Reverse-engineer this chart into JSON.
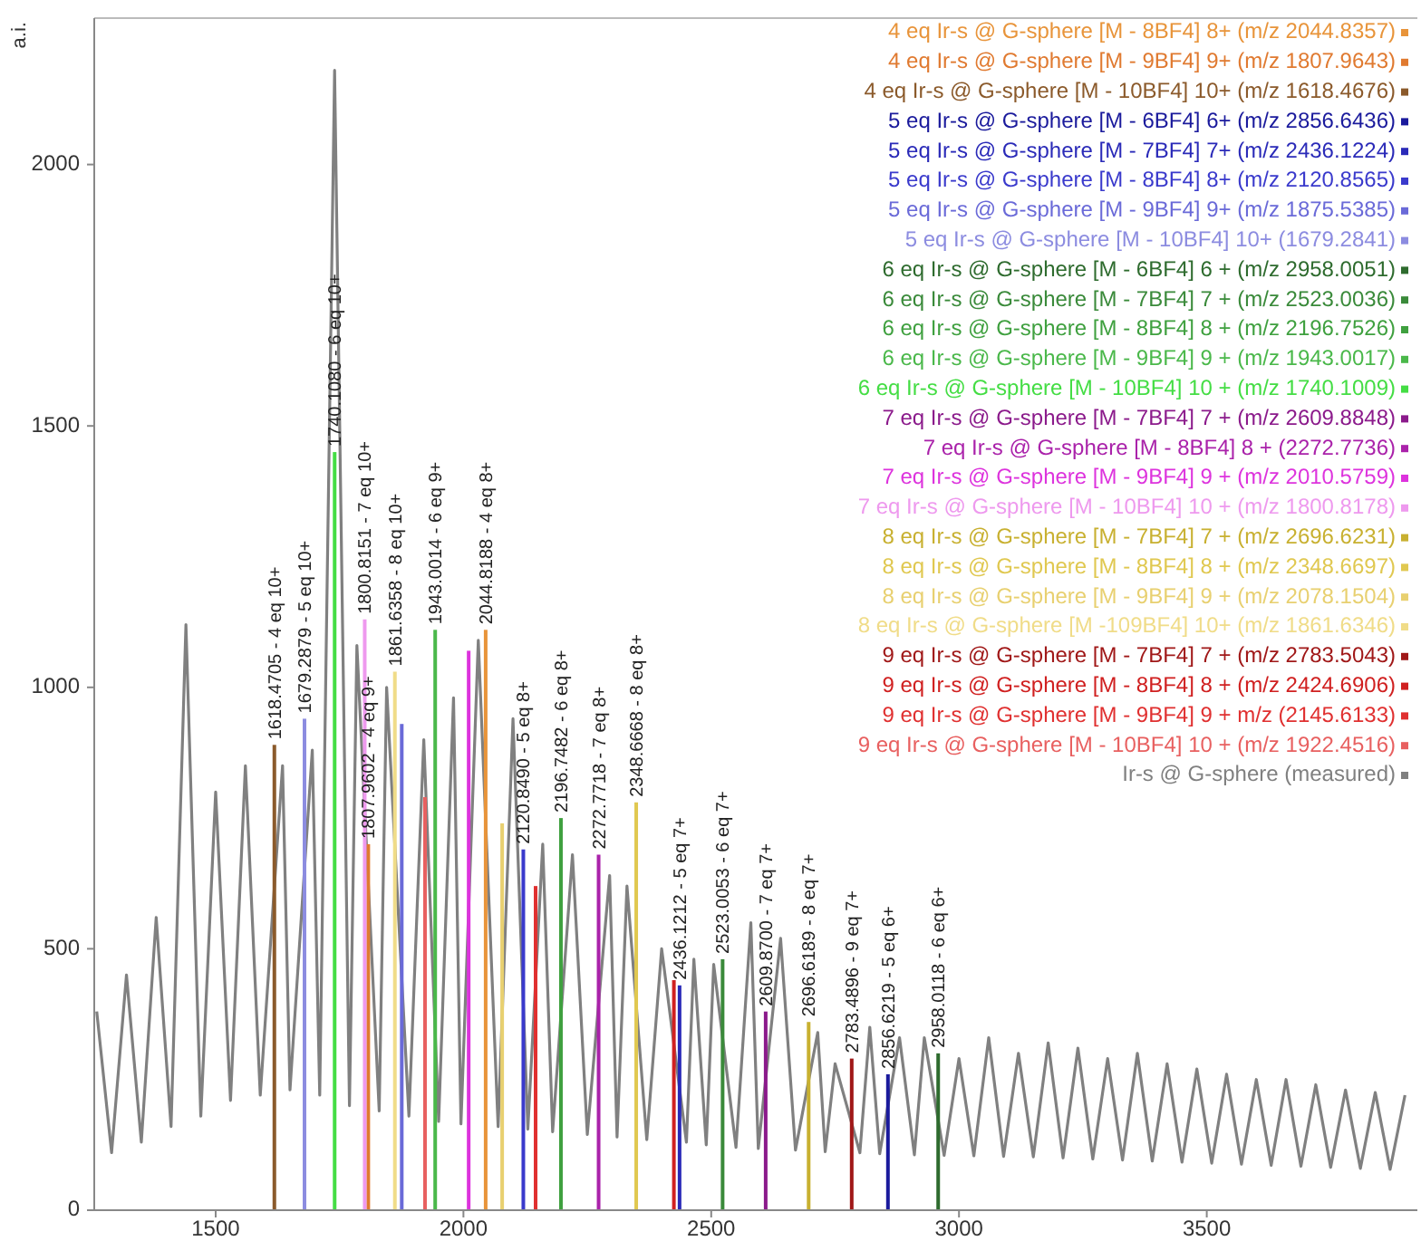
{
  "chart_data": {
    "type": "bar",
    "ylabel": "a.i.",
    "xlim": [
      1255,
      3925
    ],
    "ylim": [
      0,
      2280
    ],
    "xticks": [
      1500,
      2000,
      2500,
      3000,
      3500
    ],
    "yticks": [
      0,
      500,
      1000,
      1500,
      2000
    ],
    "grid": false,
    "legend": "top right",
    "series": [
      {
        "name": "4 eq Ir-s @ G-sphere [M - 8BF4] 8+ (m/z 2044.8357)",
        "color": "#e8943a",
        "x": [
          2044.8357
        ],
        "values": [
          1110
        ]
      },
      {
        "name": "4 eq Ir-s @ G-sphere [M - 9BF4] 9+ (m/z 1807.9643)",
        "color": "#e07a30",
        "x": [
          1807.9643
        ],
        "values": [
          700
        ]
      },
      {
        "name": "4 eq Ir-s @ G-sphere [M - 10BF4] 10+ (m/z 1618.4676)",
        "color": "#8b5a2b",
        "x": [
          1618.4676
        ],
        "values": [
          890
        ]
      },
      {
        "name": "5 eq Ir-s @ G-sphere [M - 6BF4] 6+ (m/z 2856.6436)",
        "color": "#1a1a9c",
        "x": [
          2856.6436
        ],
        "values": [
          260
        ]
      },
      {
        "name": "5 eq Ir-s @ G-sphere [M - 7BF4] 7+ (m/z 2436.1224)",
        "color": "#2a2ab8",
        "x": [
          2436.1224
        ],
        "values": [
          430
        ]
      },
      {
        "name": "5 eq Ir-s @ G-sphere [M - 8BF4] 8+ (m/z 2120.8565)",
        "color": "#3a3acc",
        "x": [
          2120.8565
        ],
        "values": [
          690
        ]
      },
      {
        "name": "5 eq Ir-s @ G-sphere [M - 9BF4] 9+ (m/z 1875.5385)",
        "color": "#6a6ad8",
        "x": [
          1875.5385
        ],
        "values": [
          930
        ]
      },
      {
        "name": "5 eq Ir-s @ G-sphere [M - 10BF4] 10+ (1679.2841)",
        "color": "#8c8ce0",
        "x": [
          1679.2841
        ],
        "values": [
          940
        ]
      },
      {
        "name": "6 eq Ir-s @ G-sphere [M - 6BF4] 6 + (m/z 2958.0051)",
        "color": "#2e6b2e",
        "x": [
          2958.0051
        ],
        "values": [
          300
        ]
      },
      {
        "name": "6 eq Ir-s @ G-sphere [M - 7BF4] 7 + (m/z 2523.0036)",
        "color": "#3a8a3a",
        "x": [
          2523.0036
        ],
        "values": [
          480
        ]
      },
      {
        "name": "6 eq Ir-s @ G-sphere [M - 8BF4] 8 + (m/z 2196.7526)",
        "color": "#3fa03f",
        "x": [
          2196.7526
        ],
        "values": [
          750
        ]
      },
      {
        "name": "6 eq Ir-s @ G-sphere [M - 9BF4] 9 + (m/z 1943.0017)",
        "color": "#4ab84a",
        "x": [
          1943.0017
        ],
        "values": [
          1110
        ]
      },
      {
        "name": "6 eq Ir-s @ G-sphere [M - 10BF4] 10 + (m/z 1740.1009)",
        "color": "#44dd44",
        "x": [
          1740.1009
        ],
        "values": [
          1450
        ]
      },
      {
        "name": "7 eq Ir-s @ G-sphere [M - 7BF4] 7 + (m/z 2609.8848)",
        "color": "#8b1a8b",
        "x": [
          2609.8848
        ],
        "values": [
          380
        ]
      },
      {
        "name": "7 eq Ir-s @ G-sphere [M - 8BF4] 8 + (2272.7736)",
        "color": "#aa22aa",
        "x": [
          2272.7736
        ],
        "values": [
          680
        ]
      },
      {
        "name": "7 eq Ir-s @ G-sphere [M - 9BF4] 9 + (m/z 2010.5759)",
        "color": "#dd33dd",
        "x": [
          2010.5759
        ],
        "values": [
          1070
        ]
      },
      {
        "name": "7 eq Ir-s @ G-sphere [M - 10BF4] 10 + (m/z 1800.8178)",
        "color": "#ee99ee",
        "x": [
          1800.8178
        ],
        "values": [
          1130
        ]
      },
      {
        "name": "8 eq Ir-s @ G-sphere [M - 7BF4] 7 + (m/z 2696.6231)",
        "color": "#c8b030",
        "x": [
          2696.6231
        ],
        "values": [
          360
        ]
      },
      {
        "name": "8 eq Ir-s @ G-sphere [M - 8BF4] 8 + (m/z 2348.6697)",
        "color": "#e0c850",
        "x": [
          2348.6697
        ],
        "values": [
          780
        ]
      },
      {
        "name": "8 eq Ir-s @ G-sphere [M - 9BF4] 9 + (m/z 2078.1504)",
        "color": "#e8d070",
        "x": [
          2078.1504
        ],
        "values": [
          740
        ]
      },
      {
        "name": "8 eq Ir-s @ G-sphere [M -109BF4] 10+ (m/z 1861.6346)",
        "color": "#f0dc88",
        "x": [
          1861.6346
        ],
        "values": [
          1030
        ]
      },
      {
        "name": "9 eq Ir-s @ G-sphere [M - 7BF4] 7 + (m/z 2783.5043)",
        "color": "#a01818",
        "x": [
          2783.5043
        ],
        "values": [
          290
        ]
      },
      {
        "name": "9 eq Ir-s @ G-sphere [M - 8BF4] 8 + (m/z 2424.6906)",
        "color": "#d02020",
        "x": [
          2424.6906
        ],
        "values": [
          440
        ]
      },
      {
        "name": "9 eq Ir-s @ G-sphere [M - 9BF4] 9 + m/z (2145.6133)",
        "color": "#e03030",
        "x": [
          2145.6133
        ],
        "values": [
          620
        ]
      },
      {
        "name": "9 eq Ir-s @ G-sphere [M - 10BF4] 10 + (m/z 1922.4516)",
        "color": "#e86060",
        "x": [
          1922.4516
        ],
        "values": [
          790
        ]
      },
      {
        "name": "Ir-s @ G-sphere (measured)",
        "color": "#808080",
        "type": "line",
        "x": [
          1260,
          1290,
          1320,
          1350,
          1380,
          1410,
          1440,
          1470,
          1500,
          1530,
          1560,
          1590,
          1635,
          1650,
          1695,
          1710,
          1740,
          1770,
          1785,
          1830,
          1845,
          1890,
          1920,
          1950,
          1980,
          1995,
          2030,
          2070,
          2100,
          2130,
          2160,
          2180,
          2220,
          2250,
          2295,
          2310,
          2330,
          2370,
          2400,
          2450,
          2465,
          2490,
          2505,
          2550,
          2580,
          2595,
          2640,
          2670,
          2715,
          2730,
          2750,
          2800,
          2820,
          2840,
          2880,
          2910,
          2930,
          2970,
          3000,
          3030,
          3060,
          3090,
          3120,
          3150,
          3180,
          3210,
          3240,
          3270,
          3300,
          3330,
          3360,
          3390,
          3420,
          3450,
          3480,
          3510,
          3540,
          3570,
          3600,
          3630,
          3660,
          3690,
          3720,
          3750,
          3780,
          3810,
          3840,
          3870,
          3900
        ],
        "values": [
          380,
          110,
          450,
          130,
          560,
          160,
          1120,
          180,
          800,
          210,
          850,
          220,
          850,
          230,
          880,
          220,
          2180,
          200,
          1080,
          190,
          1000,
          180,
          900,
          170,
          980,
          165,
          1090,
          160,
          940,
          155,
          700,
          150,
          680,
          145,
          640,
          140,
          620,
          135,
          500,
          130,
          480,
          125,
          470,
          120,
          550,
          118,
          520,
          115,
          340,
          112,
          280,
          110,
          350,
          108,
          330,
          106,
          330,
          105,
          290,
          104,
          330,
          103,
          300,
          102,
          320,
          100,
          310,
          98,
          290,
          96,
          300,
          94,
          280,
          92,
          270,
          90,
          260,
          88,
          250,
          86,
          250,
          84,
          240,
          82,
          230,
          80,
          225,
          78,
          220
        ]
      }
    ],
    "annotations": [
      {
        "text": "1618.4705 - 4 eq 10+",
        "x": 1618.4705,
        "y": 890
      },
      {
        "text": "1679.2879 - 5 eq 10+",
        "x": 1679.2879,
        "y": 940
      },
      {
        "text": "1740.1080 - 6 eq 10+",
        "x": 1740.108,
        "y": 1450
      },
      {
        "text": "1800.8151 - 7 eq 10+",
        "x": 1800.8151,
        "y": 1130
      },
      {
        "text": "1807.9602 - 4 eq 9+",
        "x": 1807.9602,
        "y": 700
      },
      {
        "text": "1861.6358 - 8 eq 10+",
        "x": 1861.6358,
        "y": 1030
      },
      {
        "text": "1943.0014 - 6 eq 9+",
        "x": 1943.0014,
        "y": 1110
      },
      {
        "text": "2044.8188 - 4 eq 8+",
        "x": 2044.8188,
        "y": 1110
      },
      {
        "text": "2120.8490 - 5 eq 8+",
        "x": 2120.849,
        "y": 690
      },
      {
        "text": "2196.7482 - 6 eq 8+",
        "x": 2196.7482,
        "y": 750
      },
      {
        "text": "2272.7718 - 7 eq 8+",
        "x": 2272.7718,
        "y": 680
      },
      {
        "text": "2348.6668 - 8 eq 8+",
        "x": 2348.6668,
        "y": 780
      },
      {
        "text": "2436.1212 - 5 eq 7+",
        "x": 2436.1212,
        "y": 430
      },
      {
        "text": "2523.0053 - 6 eq 7+",
        "x": 2523.0053,
        "y": 480
      },
      {
        "text": "2609.8700 - 7 eq 7+",
        "x": 2609.87,
        "y": 380
      },
      {
        "text": "2696.6189 - 8 eq 7+",
        "x": 2696.6189,
        "y": 360
      },
      {
        "text": "2783.4896 - 9 eq 7+",
        "x": 2783.4896,
        "y": 290
      },
      {
        "text": "2856.6219 - 5 eq 6+",
        "x": 2856.6219,
        "y": 260
      },
      {
        "text": "2958.0118 - 6 eq 6+",
        "x": 2958.0118,
        "y": 300
      }
    ]
  }
}
